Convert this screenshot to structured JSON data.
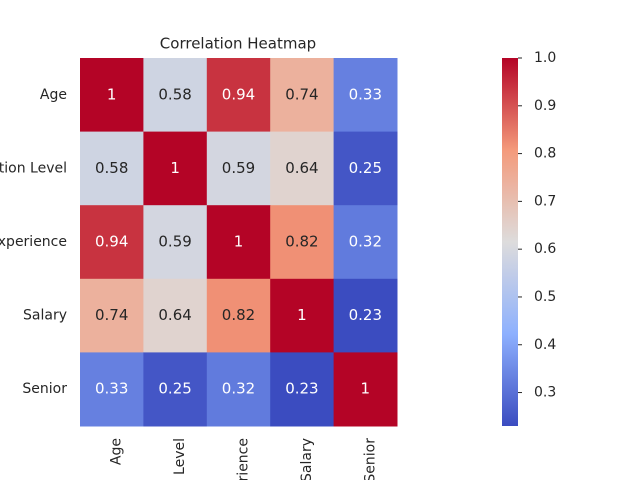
{
  "chart_data": {
    "type": "heatmap",
    "title": "Correlation Heatmap",
    "categories": [
      "Age",
      "Level",
      "rience",
      "Salary",
      "Senior"
    ],
    "rows": [
      "Age",
      "ation Level",
      "xperience",
      "Salary",
      "Senior"
    ],
    "values": [
      [
        1,
        0.58,
        0.94,
        0.74,
        0.33
      ],
      [
        0.58,
        1,
        0.59,
        0.64,
        0.25
      ],
      [
        0.94,
        0.59,
        1,
        0.82,
        0.32
      ],
      [
        0.74,
        0.64,
        0.82,
        1,
        0.23
      ],
      [
        0.33,
        0.25,
        0.32,
        0.23,
        1
      ]
    ],
    "colormap": "coolwarm",
    "zlim": [
      0.23,
      1
    ],
    "zticks": [
      0.3,
      0.4,
      0.5,
      0.6,
      0.7,
      0.8,
      0.9,
      {
        "value": 1,
        "label": "1.0"
      }
    ]
  }
}
